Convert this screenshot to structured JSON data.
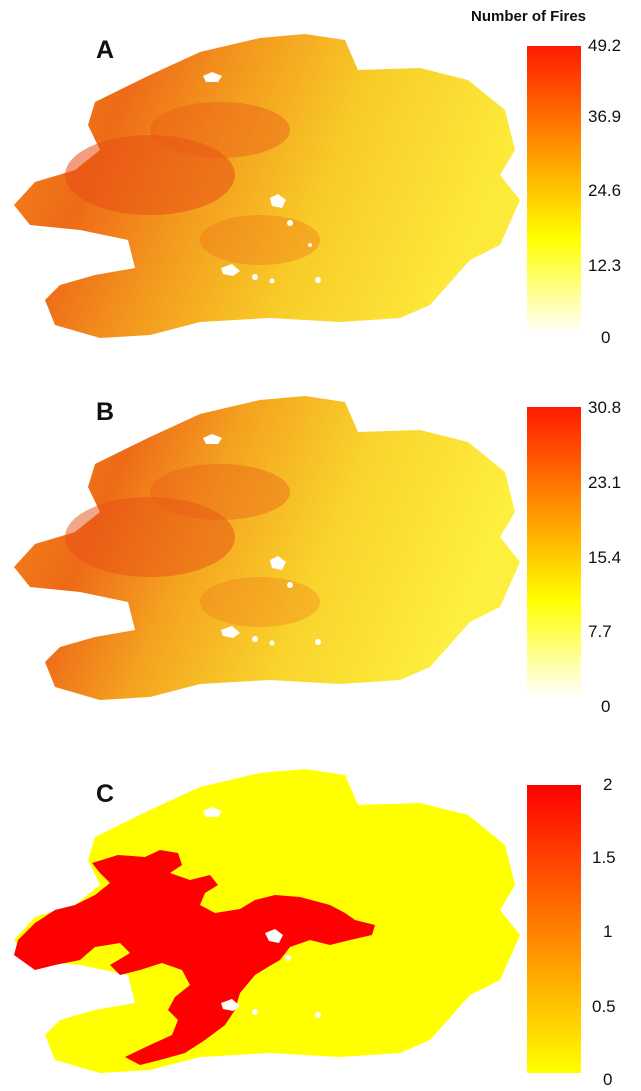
{
  "legend_title": "Number of Fires",
  "panels": [
    {
      "label": "A",
      "colorbar": {
        "max": 49.2,
        "min": 0,
        "ticks": [
          "49.2",
          "36.9",
          "24.6",
          "12.3",
          "0"
        ],
        "colors": [
          "#ff1a00",
          "#ff8c00",
          "#ffff00",
          "#ffffff"
        ]
      }
    },
    {
      "label": "B",
      "colorbar": {
        "max": 30.8,
        "min": 0,
        "ticks": [
          "30.8",
          "23.1",
          "15.4",
          "7.7",
          "0"
        ],
        "colors": [
          "#ff1a00",
          "#ff8c00",
          "#ffff00",
          "#ffffff"
        ]
      }
    },
    {
      "label": "C",
      "colorbar": {
        "max": 2,
        "min": 0,
        "ticks": [
          "2",
          "1.5",
          "1",
          "0.5",
          "0"
        ],
        "colors": [
          "#ff0000",
          "#ffff00"
        ]
      }
    }
  ]
}
